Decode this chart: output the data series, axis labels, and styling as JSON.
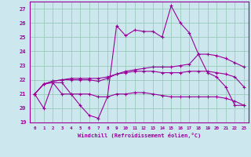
{
  "xlabel": "Windchill (Refroidissement éolien,°C)",
  "bg_color": "#cce8ee",
  "grid_color": "#99ccbb",
  "line_color": "#990099",
  "xlim": [
    -0.5,
    23.5
  ],
  "ylim": [
    19,
    27.5
  ],
  "yticks": [
    19,
    20,
    21,
    22,
    23,
    24,
    25,
    26,
    27
  ],
  "xticks": [
    0,
    1,
    2,
    3,
    4,
    5,
    6,
    7,
    8,
    9,
    10,
    11,
    12,
    13,
    14,
    15,
    16,
    17,
    18,
    19,
    20,
    21,
    22,
    23
  ],
  "line1_x": [
    0,
    1,
    2,
    3,
    4,
    5,
    6,
    7,
    8,
    9,
    10,
    11,
    12,
    13,
    14,
    15,
    16,
    17,
    18,
    19,
    20,
    21,
    22,
    23
  ],
  "line1_y": [
    21,
    20,
    21.8,
    21,
    21,
    20.2,
    19.5,
    19.3,
    20.8,
    25.8,
    25.1,
    25.5,
    25.4,
    25.4,
    25.0,
    27.2,
    26.0,
    25.3,
    23.8,
    22.5,
    22.2,
    21.5,
    20.2,
    20.2
  ],
  "line2_x": [
    0,
    1,
    2,
    3,
    4,
    5,
    6,
    7,
    8,
    9,
    10,
    11,
    12,
    13,
    14,
    15,
    16,
    17,
    18,
    19,
    20,
    21,
    22,
    23
  ],
  "line2_y": [
    21,
    21.7,
    21.8,
    21.8,
    21.0,
    21.0,
    21.0,
    20.8,
    20.8,
    21.0,
    21.0,
    21.1,
    21.1,
    21.0,
    20.9,
    20.8,
    20.8,
    20.8,
    20.8,
    20.8,
    20.8,
    20.7,
    20.5,
    20.2
  ],
  "line3_x": [
    0,
    1,
    2,
    3,
    4,
    5,
    6,
    7,
    8,
    9,
    10,
    11,
    12,
    13,
    14,
    15,
    16,
    17,
    18,
    19,
    20,
    21,
    22,
    23
  ],
  "line3_y": [
    21,
    21.7,
    21.9,
    22.0,
    22.0,
    22.0,
    22.0,
    21.9,
    22.1,
    22.4,
    22.5,
    22.6,
    22.6,
    22.6,
    22.5,
    22.5,
    22.5,
    22.6,
    22.6,
    22.6,
    22.5,
    22.4,
    22.2,
    21.5
  ],
  "line4_x": [
    0,
    1,
    2,
    3,
    4,
    5,
    6,
    7,
    8,
    9,
    10,
    11,
    12,
    13,
    14,
    15,
    16,
    17,
    18,
    19,
    20,
    21,
    22,
    23
  ],
  "line4_y": [
    21,
    21.7,
    21.9,
    22.0,
    22.1,
    22.1,
    22.1,
    22.1,
    22.2,
    22.4,
    22.6,
    22.7,
    22.8,
    22.9,
    22.9,
    22.9,
    23.0,
    23.1,
    23.8,
    23.8,
    23.7,
    23.5,
    23.2,
    22.9
  ]
}
